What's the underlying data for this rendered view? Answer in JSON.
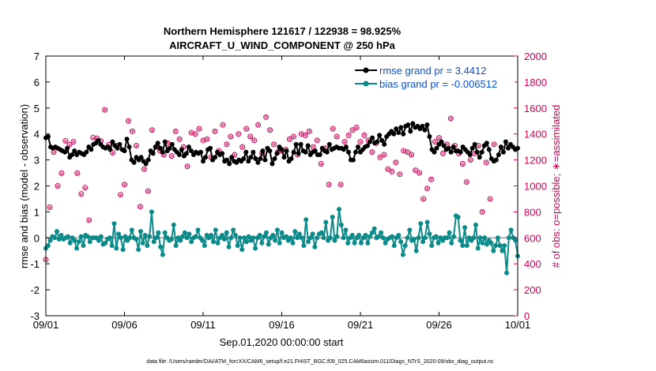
{
  "chart_data": {
    "type": "line",
    "title_line1": "Northern Hemisphere 121617 / 122938 = 98.925%",
    "title_line2": "AIRCRAFT_U_WIND_COMPONENT @ 250 hPa",
    "xlabel": "Sep.01,2020 00:00:00 start",
    "ylabel_left": "rmse and bias (model - observation)",
    "ylabel_right": "# of obs: o=possible; ∗=assimilated",
    "footer": "data file: /Users/raeder/DAI/ATM_forcXX/CAM6_setup/f.e21.FHIST_BGC.f09_025.CAM6assim.011/Diags_NTrS_2020-09/obs_diag_output.nc",
    "xlim": [
      0,
      30
    ],
    "ylim_left": [
      -3,
      7
    ],
    "ylim_right": [
      0,
      2000
    ],
    "x_ticks": [
      0,
      5,
      10,
      15,
      20,
      25,
      30
    ],
    "x_tick_labels": [
      "09/01",
      "09/06",
      "09/11",
      "09/16",
      "09/21",
      "09/26",
      "10/01"
    ],
    "y_left_ticks": [
      "-3",
      "-2",
      "-1",
      "0",
      "1",
      "2",
      "3",
      "4",
      "5",
      "6",
      "7"
    ],
    "y_right_ticks": [
      "0",
      "200",
      "400",
      "600",
      "800",
      "1000",
      "1200",
      "1400",
      "1600",
      "1800",
      "2000"
    ],
    "colors": {
      "rmse": "#000000",
      "bias": "#0b8a8a",
      "obs": "#cc0055",
      "zero": "#b0b0b0",
      "legend_text": "#0b4fd6"
    },
    "series": [
      {
        "name": "rmse",
        "legend": "rmse grand pr = 3.4412",
        "values": [
          3.85,
          3.9,
          3.5,
          3.45,
          3.5,
          3.45,
          3.4,
          3.35,
          3.3,
          3.45,
          3.1,
          3.2,
          3.35,
          3.2,
          3.3,
          3.25,
          3.2,
          3.3,
          3.5,
          3.4,
          3.6,
          3.65,
          3.75,
          3.6,
          3.5,
          3.45,
          3.5,
          3.4,
          3.7,
          3.55,
          3.45,
          3.6,
          3.4,
          3.35,
          3.8,
          3.5,
          3.0,
          2.9,
          3.1,
          3.0,
          3.1,
          2.95,
          2.85,
          3.0,
          3.35,
          3.25,
          3.5,
          3.65,
          3.45,
          3.3,
          3.7,
          3.35,
          3.45,
          3.6,
          3.4,
          3.3,
          3.2,
          3.4,
          3.15,
          3.25,
          3.5,
          3.35,
          3.2,
          3.3,
          3.25,
          3.3,
          2.95,
          3.1,
          3.4,
          3.45,
          3.0,
          3.1,
          3.3,
          3.2,
          3.25,
          2.95,
          3.0,
          2.85,
          3.1,
          2.95,
          2.9,
          3.0,
          2.95,
          3.05,
          3.3,
          2.95,
          3.1,
          3.3,
          3.05,
          2.9,
          3.05,
          3.35,
          3.0,
          3.45,
          3.35,
          2.85,
          3.05,
          3.25,
          3.5,
          3.4,
          3.1,
          3.35,
          2.95,
          3.05,
          3.3,
          3.6,
          3.25,
          3.6,
          3.35,
          3.3,
          3.55,
          3.2,
          3.3,
          3.35,
          3.2,
          3.2,
          3.45,
          3.35,
          3.3,
          3.6,
          3.4,
          3.45,
          3.5,
          3.45,
          3.45,
          3.4,
          3.5,
          3.3,
          3.0,
          3.0,
          3.3,
          3.5,
          3.3,
          3.4,
          3.5,
          3.55,
          3.7,
          3.85,
          3.65,
          3.7,
          3.95,
          3.75,
          3.6,
          3.9,
          4.0,
          4.1,
          4.0,
          4.2,
          4.05,
          4.25,
          4.0,
          4.3,
          4.35,
          4.1,
          4.4,
          4.25,
          4.3,
          4.2,
          4.3,
          4.15,
          4.35,
          3.9,
          3.4,
          3.3,
          3.45,
          3.6,
          3.7,
          3.55,
          3.4,
          3.45,
          3.3,
          3.5,
          3.35,
          3.35,
          3.3,
          3.5,
          3.4,
          3.3,
          3.2,
          3.45,
          3.6,
          3.3,
          3.1,
          3.3,
          3.55,
          3.65,
          3.4,
          3.05,
          2.95,
          3.0,
          3.2,
          3.5,
          3.3,
          3.7,
          3.45,
          3.6,
          3.5,
          3.4,
          3.45
        ]
      },
      {
        "name": "bias",
        "legend": "bias grand pr = -0.006512",
        "values": [
          -0.4,
          -0.3,
          -0.1,
          0.05,
          0.0,
          0.25,
          -0.05,
          0.1,
          -0.05,
          0.0,
          0.05,
          -0.2,
          0.0,
          -0.1,
          -0.4,
          -0.15,
          0.05,
          -0.3,
          0.1,
          0.05,
          -0.15,
          0.0,
          0.0,
          0.0,
          -0.1,
          0.05,
          -0.25,
          -0.2,
          -0.05,
          0.0,
          -0.3,
          0.55,
          -0.4,
          0.15,
          0.0,
          -0.45,
          0.05,
          -0.1,
          0.0,
          0.3,
          0.0,
          -0.05,
          -0.45,
          0.25,
          -0.2,
          0.1,
          -0.3,
          0.05,
          1.0,
          -0.15,
          0.0,
          0.2,
          -0.35,
          -0.65,
          0.2,
          0.0,
          -0.1,
          -0.05,
          0.5,
          -0.3,
          0.0,
          -0.1,
          0.05,
          0.2,
          0.0,
          0.15,
          -0.15,
          0.0,
          0.05,
          0.3,
          0.0,
          -0.1,
          -0.3,
          0.1,
          0.0,
          0.1,
          -0.15,
          0.3,
          -0.2,
          0.0,
          0.1,
          -0.05,
          0.2,
          -0.35,
          0.0,
          0.3,
          0.1,
          -0.3,
          0.0,
          -0.45,
          0.0,
          -0.15,
          0.05,
          -0.1,
          0.0,
          -0.4,
          0.0,
          0.1,
          -0.2,
          0.05,
          0.2,
          -0.25,
          0.0,
          0.1,
          -0.1,
          0.3,
          -0.2,
          0.2,
          0.0,
          0.05,
          -0.1,
          0.0,
          -0.2,
          0.25,
          0.0,
          0.15,
          0.0,
          -0.3,
          0.7,
          -0.15,
          0.0,
          0.15,
          -0.35,
          0.0,
          0.15,
          0.2,
          0.0,
          0.6,
          -0.1,
          0.0,
          0.8,
          -0.1,
          0.05,
          1.1,
          0.5,
          0.0,
          0.3,
          -0.2,
          0.0,
          0.1,
          -0.2,
          0.0,
          0.1,
          -0.2,
          0.0,
          0.1,
          -0.2,
          0.05,
          0.2,
          0.35,
          0.0,
          0.05,
          0.2,
          0.0,
          -0.2,
          -0.05,
          0.0,
          0.05,
          -0.3,
          0.0,
          0.1,
          -0.15,
          -0.65,
          -0.3,
          0.0,
          0.3,
          -0.1,
          -0.05,
          -0.5,
          0.0,
          0.55,
          -0.15,
          0.0,
          0.6,
          0.15,
          -0.3,
          0.0,
          0.05,
          -0.2,
          0.0,
          -0.1,
          0.0,
          0.0,
          0.2,
          -0.2,
          0.05,
          0.85,
          0.8,
          -0.1,
          -0.3,
          0.4,
          -0.3,
          0.0,
          -0.1,
          0.0,
          0.5,
          -0.4,
          0.0,
          -0.2,
          0.0,
          -0.25,
          -0.1,
          -0.2,
          -0.5,
          -0.3,
          0.0,
          -0.3,
          -0.5,
          -0.3,
          -1.35,
          0.0,
          0.3,
          0.0,
          -0.1,
          -0.7
        ]
      }
    ],
    "obs_possible_step": 0.25,
    "obs_possible": [
      432,
      836,
      1260,
      1000,
      1098,
      1347,
      1318,
      1340,
      1098,
      938,
      986,
      736,
      1372,
      1366,
      1345,
      1586,
      1317,
      1255,
      1310,
      932,
      1010,
      1500,
      1420,
      1310,
      840,
      1130,
      960,
      1430,
      1300,
      1270,
      1240,
      1330,
      1230,
      1420,
      1360,
      1300,
      1150,
      1410,
      1400,
      1440,
      1350,
      1360,
      1220,
      1420,
      1270,
      1470,
      1320,
      1380,
      1240,
      1400,
      1300,
      1440,
      1380,
      1350,
      1470,
      1250,
      1530,
      1430,
      1320,
      1260,
      1270,
      1280,
      1360,
      1380,
      1240,
      1400,
      1390,
      1420,
      1300,
      1350,
      1170,
      1290,
      1010,
      1440,
      1380,
      1010,
      1340,
      1390,
      1430,
      1450,
      1340,
      1390,
      1350,
      1260,
      1330,
      1220,
      1240,
      1130,
      1110,
      1180,
      1090,
      1270,
      1260,
      1240,
      1120,
      1100,
      900,
      980,
      1050,
      1340,
      1370,
      1250,
      1320,
      1520,
      1310,
      1250,
      1170,
      1030,
      1200,
      1250,
      1310,
      800,
      1180,
      900,
      1320
    ],
    "obs_assimilated": [
      428,
      830,
      1255,
      995,
      1090,
      1340,
      1310,
      1335,
      1090,
      930,
      980,
      730,
      1365,
      1360,
      1340,
      1580,
      1310,
      1250,
      1305,
      925,
      1005,
      1495,
      1415,
      1305,
      835,
      1125,
      955,
      1425,
      1295,
      1265,
      1235,
      1325,
      1225,
      1415,
      1355,
      1295,
      1145,
      1405,
      1395,
      1435,
      1345,
      1355,
      1215,
      1415,
      1265,
      1465,
      1315,
      1375,
      1235,
      1395,
      1295,
      1435,
      1375,
      1345,
      1465,
      1245,
      1525,
      1425,
      1315,
      1255,
      1265,
      1275,
      1355,
      1375,
      1235,
      1395,
      1385,
      1415,
      1295,
      1345,
      1165,
      1285,
      1005,
      1435,
      1375,
      1005,
      1335,
      1385,
      1425,
      1445,
      1335,
      1385,
      1345,
      1255,
      1325,
      1215,
      1235,
      1125,
      1105,
      1175,
      1085,
      1265,
      1255,
      1235,
      1115,
      1095,
      895,
      975,
      1045,
      1335,
      1365,
      1245,
      1315,
      1515,
      1305,
      1245,
      1165,
      1025,
      1195,
      1245,
      1305,
      795,
      1175,
      895,
      1315
    ]
  }
}
